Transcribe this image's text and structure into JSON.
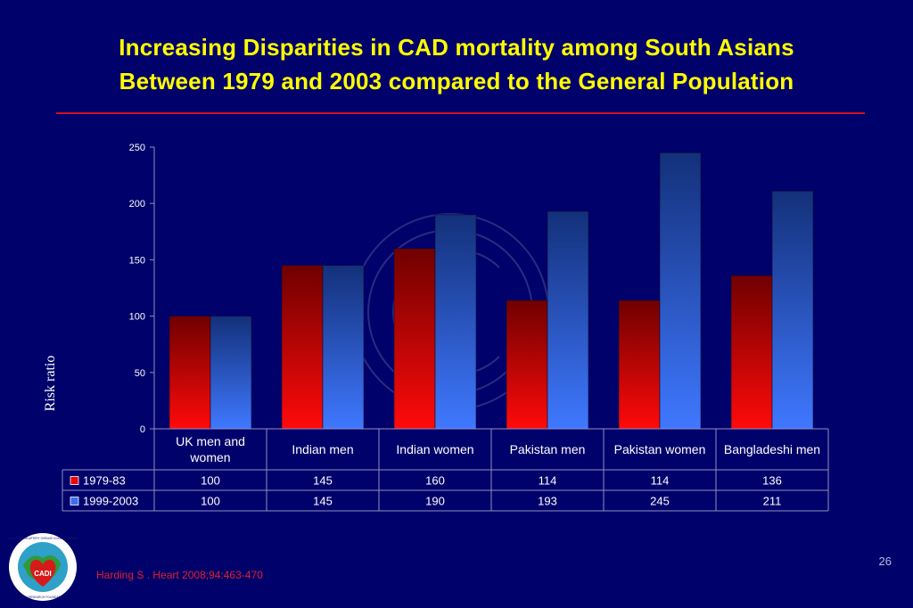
{
  "slide": {
    "title_lines": [
      "Increasing Disparities in CAD mortality among South Asians",
      "Between 1979 and 2003 compared to the General Population"
    ],
    "citation": "Harding S . Heart 2008;94:463-470",
    "slide_number": "26",
    "logo": {
      "top_text": "COALITION ON ARTERY DISEASE IN ASIAN INDIANS",
      "center_text": "CADI",
      "bottom_text": "CADI RESEARCH FOUNDATION"
    }
  },
  "colors": {
    "background": "#01016b",
    "title": "#ffff00",
    "rule": "#d0121e",
    "series_1979": "#e8060e",
    "series_1999": "#3d6ef0",
    "table_text": "#ffffff"
  },
  "chart_data": {
    "type": "bar",
    "ylabel": "Risk ratio",
    "ylim": [
      0,
      250
    ],
    "yticks": [
      0,
      50,
      100,
      150,
      200,
      250
    ],
    "categories": [
      [
        "UK men and",
        "women"
      ],
      [
        "Indian men"
      ],
      [
        "Indian women"
      ],
      [
        "Pakistan men"
      ],
      [
        "Pakistan women"
      ],
      [
        "Bangladeshi men"
      ]
    ],
    "series": [
      {
        "name": "1979-83",
        "values": [
          100,
          145,
          160,
          114,
          114,
          136
        ]
      },
      {
        "name": "1999-2003",
        "values": [
          100,
          145,
          190,
          193,
          245,
          211
        ]
      }
    ],
    "data_table": true,
    "legend": "data-table"
  }
}
